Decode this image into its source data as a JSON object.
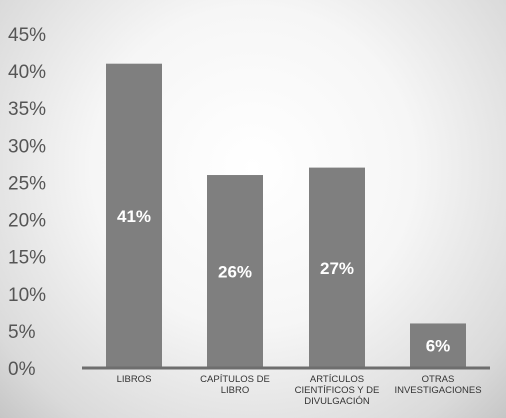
{
  "chart_data": {
    "type": "bar",
    "categories": [
      [
        "LIBROS"
      ],
      [
        "CAPÍTULOS DE",
        "LIBRO"
      ],
      [
        "ARTÍCULOS",
        "CIENTÍFICOS Y DE",
        "DIVULGACIÓN"
      ],
      [
        "OTRAS",
        "INVESTIGACIONES"
      ]
    ],
    "values": [
      41,
      26,
      27,
      6
    ],
    "value_labels": [
      "41%",
      "26%",
      "27%",
      "6%"
    ],
    "ylim": [
      0,
      45
    ],
    "yticks": [
      "0%",
      "5%",
      "10%",
      "15%",
      "20%",
      "25%",
      "30%",
      "35%",
      "40%",
      "45%"
    ],
    "bar_color": "#7f7f7f",
    "grid": false,
    "legend": "none"
  }
}
